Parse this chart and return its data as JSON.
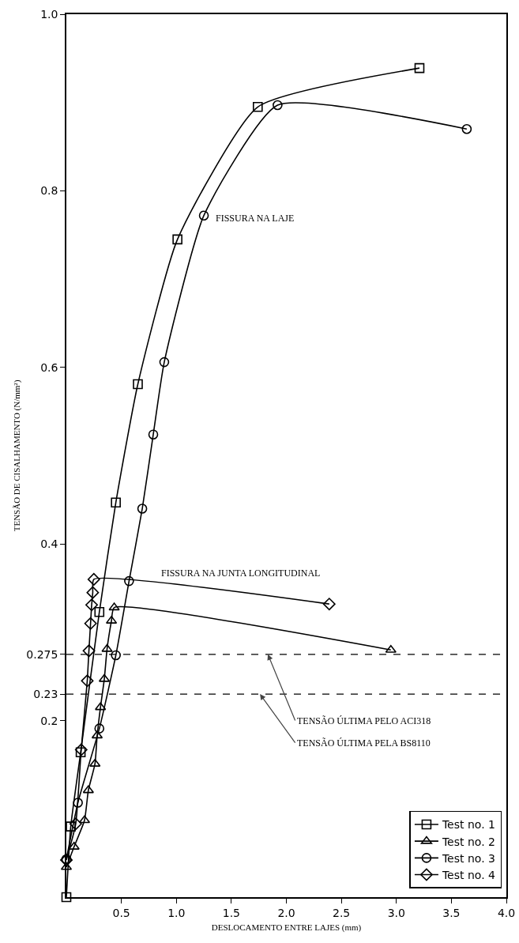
{
  "chart_data": {
    "type": "line",
    "xlabel": "DESLOCAMENTO ENTRE LAJES (mm)",
    "ylabel": "TENSÃO DE CISALHAMENTO (N/mm²)",
    "xlim": [
      0,
      4.0
    ],
    "ylim": [
      0,
      1.0
    ],
    "xticks": [
      0.5,
      {
        "value": 1.0,
        "label": "1.0"
      },
      1.5,
      {
        "value": 2.0,
        "label": "2.0"
      },
      2.5,
      {
        "value": 3.0,
        "label": "3.0"
      },
      3.5,
      {
        "value": 4.0,
        "label": "4.0"
      }
    ],
    "yticks": [
      0.2,
      0.23,
      0.275,
      0.4,
      0.6,
      0.8,
      {
        "value": 1.0,
        "label": "1.0"
      }
    ],
    "grid": false,
    "legend": "bottom right",
    "line_style": "solid",
    "series": [
      {
        "name": "Test no. 1",
        "color": "#000000",
        "marker": "square",
        "x": [
          0,
          0.04,
          0.13,
          0.3,
          0.45,
          0.65,
          1.01,
          1.74,
          3.21
        ],
        "values": [
          0,
          0.08,
          0.164,
          0.323,
          0.447,
          0.581,
          0.745,
          0.895,
          0.939
        ]
      },
      {
        "name": "Test no. 2",
        "color": "#000000",
        "marker": "triangle",
        "x": [
          0,
          0.07,
          0.165,
          0.2,
          0.26,
          0.28,
          0.31,
          0.345,
          0.37,
          0.41,
          0.435,
          2.95
        ],
        "values": [
          0.034,
          0.057,
          0.087,
          0.121,
          0.151,
          0.183,
          0.215,
          0.247,
          0.281,
          0.313,
          0.328,
          0.28
        ]
      },
      {
        "name": "Test no. 3",
        "color": "#000000",
        "marker": "circle",
        "x": [
          0,
          0.105,
          0.3,
          0.45,
          0.57,
          0.69,
          0.79,
          0.89,
          1.25,
          1.92,
          3.64
        ],
        "values": [
          0.043,
          0.107,
          0.191,
          0.274,
          0.358,
          0.44,
          0.524,
          0.606,
          0.772,
          0.897,
          0.87
        ]
      },
      {
        "name": "Test no. 4",
        "color": "#000000",
        "marker": "diamond",
        "x": [
          0,
          0.085,
          0.135,
          0.19,
          0.205,
          0.22,
          0.23,
          0.24,
          0.25,
          2.39
        ],
        "values": [
          0.042,
          0.083,
          0.167,
          0.245,
          0.279,
          0.31,
          0.331,
          0.345,
          0.36,
          0.332
        ]
      }
    ],
    "ref_lines": [
      {
        "axis": "y",
        "value": 0.275,
        "label": "TENSÃO ÚLTIMA PELO ACI318",
        "line_style": "dashed"
      },
      {
        "axis": "y",
        "value": 0.23,
        "label": "TENSÃO ÚLTIMA PELA BS8110",
        "line_style": "dashed"
      }
    ],
    "annotations": [
      "FISSURA NA LAJE",
      "FISSURA NA JUNTA LONGITUDINAL"
    ]
  }
}
